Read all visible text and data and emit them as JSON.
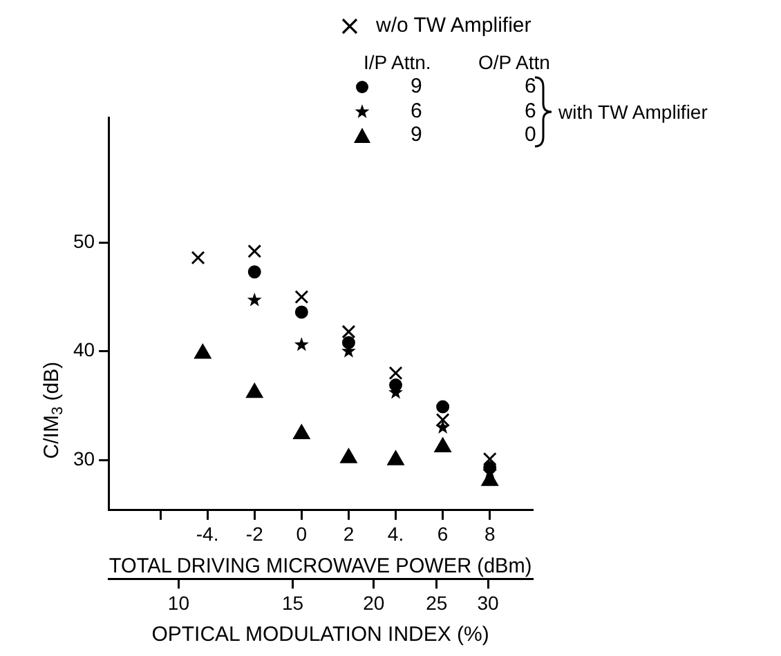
{
  "chart_data": {
    "type": "scatter",
    "xlabel": "TOTAL DRIVING MICROWAVE POWER (dBm)",
    "ylabel": "C/IM$_{3}$ (dB)",
    "x2label": "OPTICAL MODULATION INDEX (%)",
    "xlim": [
      -8.2,
      9.8
    ],
    "xticks": [
      {
        "value": -6,
        "label": null
      },
      {
        "value": -4,
        "label": "-4."
      },
      -2,
      0,
      2,
      {
        "value": 4,
        "label": "4."
      },
      6,
      8
    ],
    "x2lim": [
      7.8,
      35.1
    ],
    "x2ticks": [
      10,
      15,
      20,
      25,
      30
    ],
    "log": "x2",
    "ylim": [
      25.4,
      61.5
    ],
    "yticks": [
      30,
      40,
      50
    ],
    "grid": false,
    "legend": "top",
    "annotations": [
      "I/P Attn.",
      "O/P Attn",
      "with TW Amplifier"
    ],
    "series": [
      {
        "name": "w/o TW Amplifier",
        "color": "#000000",
        "marker": "cross",
        "x": [
          -4.4,
          -2,
          0,
          2,
          4,
          6,
          8
        ],
        "values": [
          48.6,
          49.2,
          45.0,
          41.8,
          38.0,
          33.7,
          30.1
        ]
      },
      {
        "name": "9 6",
        "color": "#000000",
        "marker": "circle",
        "x": [
          -2,
          0,
          2,
          4,
          6,
          8
        ],
        "values": [
          47.3,
          43.6,
          40.8,
          36.9,
          34.9,
          29.3
        ]
      },
      {
        "name": "6 6",
        "color": "#000000",
        "marker": "star",
        "x": [
          -2,
          0,
          2,
          4,
          6,
          8
        ],
        "values": [
          44.7,
          40.6,
          40.0,
          36.2,
          33.0,
          28.9
        ]
      },
      {
        "name": "9 0",
        "color": "#000000",
        "marker": "triangle",
        "x": [
          -4.2,
          -2,
          0,
          2,
          4,
          6,
          8
        ],
        "values": [
          39.8,
          36.2,
          32.4,
          30.2,
          30.0,
          31.2,
          28.1
        ]
      }
    ]
  }
}
